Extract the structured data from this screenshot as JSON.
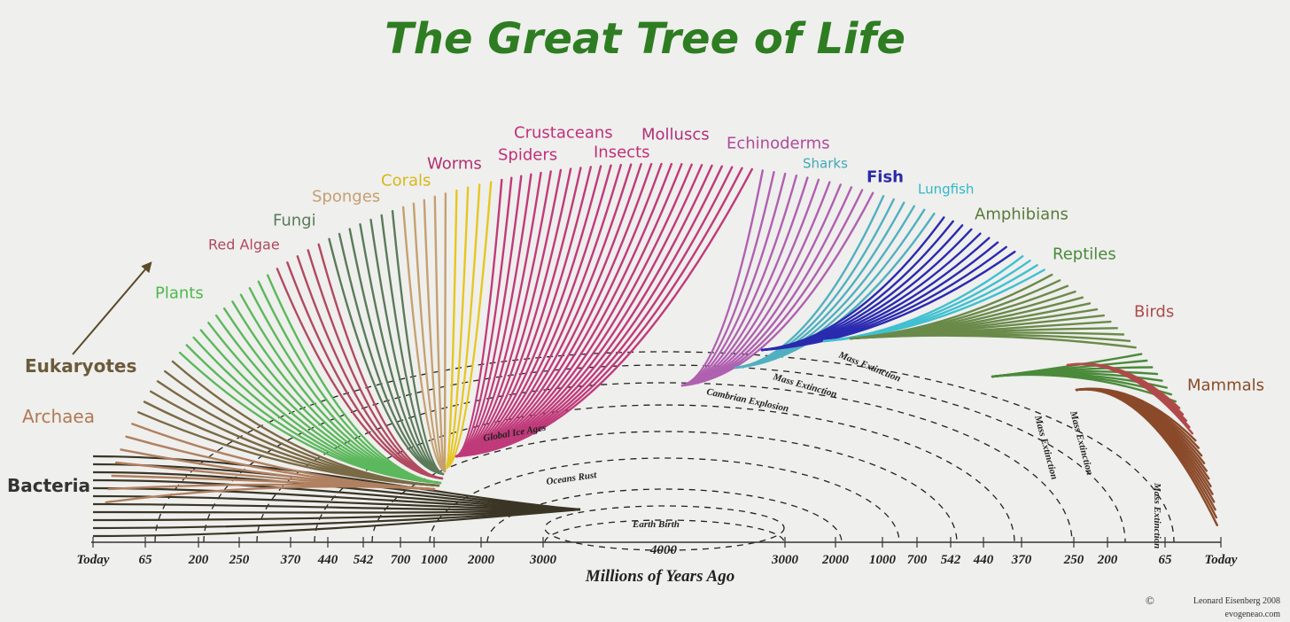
{
  "title": "The Great Tree of Life",
  "groups": [
    "Bacteria",
    "Archaea",
    "Eukaryotes",
    "Plants",
    "Red Algae",
    "Fungi",
    "Sponges",
    "Corals",
    "Worms",
    "Spiders",
    "Crustaceans",
    "Insects",
    "Molluscs",
    "Echinoderms",
    "Sharks",
    "Fish",
    "Lungfish",
    "Amphibians",
    "Reptiles",
    "Birds",
    "Mammals"
  ],
  "events": [
    "Global Ice Ages",
    "Oceans Rust",
    "Earth Birth",
    "Cambrian Explosion",
    "Mass Extinction",
    "Mass Extinction",
    "Mass Extinction",
    "Mass Extinction",
    "Mass Extinction"
  ],
  "axis": {
    "title": "Millions of Years Ago",
    "left_ticks": [
      "Today",
      "65",
      "200",
      "250",
      "370",
      "440",
      "542",
      "700",
      "1000",
      "2000",
      "3000"
    ],
    "center_tick": "4000",
    "right_ticks": [
      "3000",
      "2000",
      "1000",
      "700",
      "542",
      "440",
      "370",
      "250",
      "200",
      "65",
      "Today"
    ]
  },
  "credit": {
    "symbol": "©",
    "author": "Leonard Eisenberg  2008",
    "site": "evogeneao.com"
  }
}
